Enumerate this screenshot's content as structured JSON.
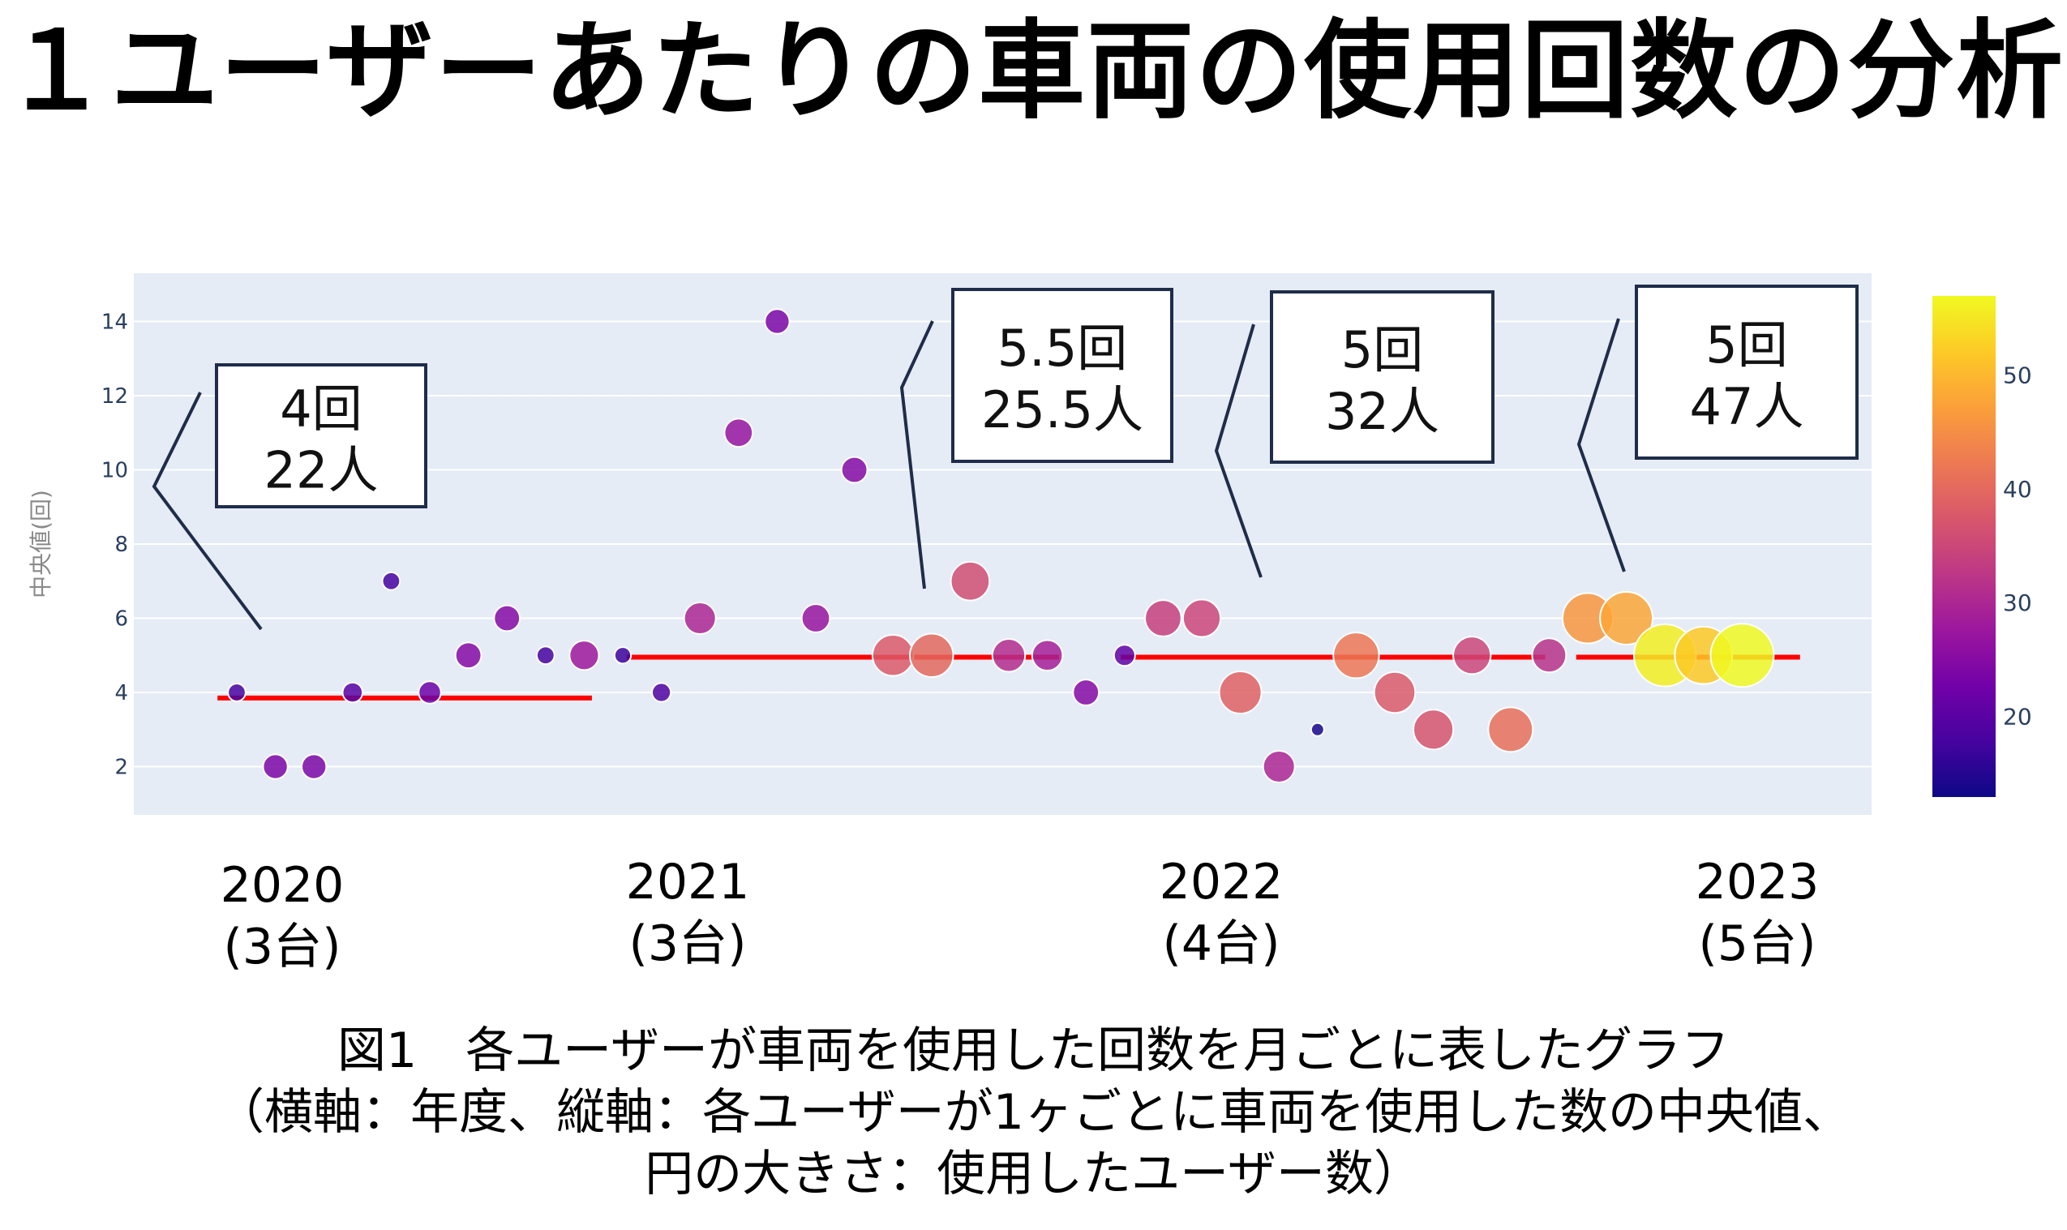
{
  "title": "１ユーザーあたりの車両の使用回数の分析",
  "caption": {
    "line1": "図1　各ユーザーが車両を使用した回数を月ごとに表したグラフ",
    "line2": "（横軸：年度、縦軸：各ユーザーが1ヶごとに車両を使用した数の中央値、",
    "line3": "円の大きさ：使用したユーザー数）"
  },
  "year_labels": [
    {
      "year": "2020",
      "vehicles": "(3台)"
    },
    {
      "year": "2021",
      "vehicles": "(3台)"
    },
    {
      "year": "2022",
      "vehicles": "(4台)"
    },
    {
      "year": "2023",
      "vehicles": "(5台)"
    }
  ],
  "chart_data": {
    "type": "scatter",
    "ylabel": "中央値(回)",
    "xlabel": "",
    "ylim": [
      0.7,
      15.3
    ],
    "yticks": [
      2,
      4,
      6,
      8,
      10,
      12,
      14
    ],
    "grid": true,
    "colorbar": {
      "ticks": [
        20,
        30,
        40,
        50
      ],
      "range": [
        13,
        57
      ],
      "colors": [
        "#0d0887",
        "#46039f",
        "#7201a8",
        "#9c179e",
        "#bd3786",
        "#d8576b",
        "#ed7953",
        "#fb9f3a",
        "#fdca26",
        "#f0f921"
      ]
    },
    "points": [
      {
        "x": 0,
        "y": 4,
        "users": 18
      },
      {
        "x": 1,
        "y": 2,
        "users": 24
      },
      {
        "x": 2,
        "y": 2,
        "users": 24
      },
      {
        "x": 3,
        "y": 4,
        "users": 20
      },
      {
        "x": 4,
        "y": 7,
        "users": 18
      },
      {
        "x": 5,
        "y": 4,
        "users": 22
      },
      {
        "x": 6,
        "y": 5,
        "users": 25
      },
      {
        "x": 7,
        "y": 6,
        "users": 25
      },
      {
        "x": 8,
        "y": 5,
        "users": 18
      },
      {
        "x": 9,
        "y": 5,
        "users": 28
      },
      {
        "x": 10,
        "y": 5,
        "users": 17
      },
      {
        "x": 11,
        "y": 4,
        "users": 19
      },
      {
        "x": 12,
        "y": 6,
        "users": 30
      },
      {
        "x": 13,
        "y": 11,
        "users": 27
      },
      {
        "x": 14,
        "y": 14,
        "users": 24
      },
      {
        "x": 15,
        "y": 6,
        "users": 27
      },
      {
        "x": 16,
        "y": 10,
        "users": 25
      },
      {
        "x": 17,
        "y": 5,
        "users": 38
      },
      {
        "x": 18,
        "y": 5,
        "users": 40
      },
      {
        "x": 19,
        "y": 7,
        "users": 36
      },
      {
        "x": 20,
        "y": 5,
        "users": 31
      },
      {
        "x": 21,
        "y": 5,
        "users": 29
      },
      {
        "x": 22,
        "y": 4,
        "users": 25
      },
      {
        "x": 23,
        "y": 5,
        "users": 21
      },
      {
        "x": 24,
        "y": 6,
        "users": 34
      },
      {
        "x": 25,
        "y": 6,
        "users": 35
      },
      {
        "x": 26,
        "y": 4,
        "users": 39
      },
      {
        "x": 27,
        "y": 2,
        "users": 30
      },
      {
        "x": 28,
        "y": 3,
        "users": 14
      },
      {
        "x": 29,
        "y": 5,
        "users": 42
      },
      {
        "x": 30,
        "y": 4,
        "users": 38
      },
      {
        "x": 31,
        "y": 3,
        "users": 37
      },
      {
        "x": 32,
        "y": 5,
        "users": 35
      },
      {
        "x": 33,
        "y": 3,
        "users": 41
      },
      {
        "x": 34,
        "y": 5,
        "users": 32
      },
      {
        "x": 35,
        "y": 6,
        "users": 46
      },
      {
        "x": 36,
        "y": 6,
        "users": 48
      },
      {
        "x": 37,
        "y": 5,
        "users": 56
      },
      {
        "x": 38,
        "y": 5,
        "users": 52
      },
      {
        "x": 39,
        "y": 5,
        "users": 57
      }
    ],
    "median_lines": [
      {
        "x_start": -0.5,
        "x_end": 9.2,
        "y": 3.85
      },
      {
        "x_start": 10.1,
        "x_end": 21.3,
        "y": 4.95
      },
      {
        "x_start": 22.9,
        "x_end": 33.9,
        "y": 4.95
      },
      {
        "x_start": 34.7,
        "x_end": 40.5,
        "y": 4.95
      }
    ],
    "annotations": [
      {
        "line1": "4回",
        "line2": "22人"
      },
      {
        "line1": "5.5回",
        "line2": "25.5人"
      },
      {
        "line1": "5回",
        "line2": "32人"
      },
      {
        "line1": "5回",
        "line2": "47人"
      }
    ]
  }
}
